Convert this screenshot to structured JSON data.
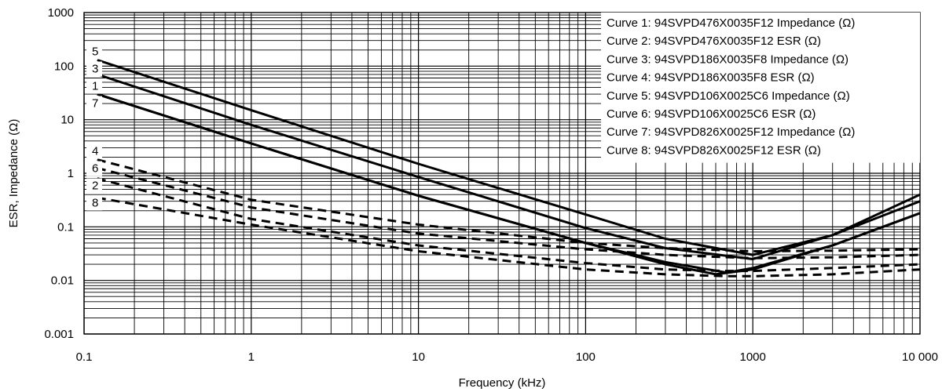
{
  "chart_data": {
    "type": "line",
    "xlabel": "Frequency (kHz)",
    "ylabel": "ESR, Impedance (Ω)",
    "x_scale": "log",
    "y_scale": "log",
    "xlim": [
      0.1,
      10000
    ],
    "ylim": [
      0.001,
      1000
    ],
    "x_tick_labels": [
      "0.1",
      "1",
      "10",
      "100",
      "1000",
      "10 000"
    ],
    "y_tick_labels": [
      "0.001",
      "0.01",
      "0.1",
      "1",
      "10",
      "100",
      "1000"
    ],
    "grid": true,
    "legend_position": "top-right",
    "series": [
      {
        "name": "Curve 1: 94SVPD476X0035F12 Impedance (Ω)",
        "label": "1",
        "style": "solid",
        "x": [
          0.12,
          1,
          10,
          100,
          300,
          700,
          1000,
          3000,
          10000
        ],
        "y": [
          30,
          3.6,
          0.38,
          0.05,
          0.022,
          0.014,
          0.017,
          0.045,
          0.18
        ]
      },
      {
        "name": "Curve 2: 94SVPD476X0035F12 ESR (Ω)",
        "label": "2",
        "style": "dashed",
        "x": [
          0.12,
          1,
          10,
          100,
          300,
          700,
          1000,
          3000,
          10000
        ],
        "y": [
          0.8,
          0.14,
          0.045,
          0.021,
          0.016,
          0.015,
          0.015,
          0.017,
          0.02
        ]
      },
      {
        "name": "Curve 3: 94SVPD186X0035F8 Impedance (Ω)",
        "label": "3",
        "style": "solid",
        "x": [
          0.12,
          1,
          10,
          100,
          300,
          1000,
          3000,
          10000
        ],
        "y": [
          70,
          8,
          0.85,
          0.095,
          0.04,
          0.025,
          0.07,
          0.3
        ]
      },
      {
        "name": "Curve 4: 94SVPD186X0035F8 ESR (Ω)",
        "label": "4",
        "style": "dashed",
        "x": [
          0.12,
          1,
          10,
          100,
          300,
          1000,
          3000,
          10000
        ],
        "y": [
          1.8,
          0.32,
          0.11,
          0.05,
          0.04,
          0.035,
          0.036,
          0.038
        ]
      },
      {
        "name": "Curve 5: 94SVPD106X0025C6 Impedance (Ω)",
        "label": "5",
        "style": "solid",
        "x": [
          0.12,
          1,
          10,
          100,
          300,
          1000,
          3000,
          10000
        ],
        "y": [
          130,
          15,
          1.5,
          0.17,
          0.06,
          0.03,
          0.07,
          0.4
        ]
      },
      {
        "name": "Curve 6: 94SVPD106X0025C6 ESR (Ω)",
        "label": "6",
        "style": "dashed",
        "x": [
          0.12,
          1,
          10,
          100,
          300,
          1000,
          3000,
          10000
        ],
        "y": [
          1.25,
          0.23,
          0.075,
          0.038,
          0.03,
          0.026,
          0.027,
          0.03
        ]
      },
      {
        "name": "Curve 7: 94SVPD826X0025F12 Impedance (Ω)",
        "label": "7",
        "style": "solid",
        "x": [
          0.12,
          1,
          10,
          100,
          300,
          600,
          1000,
          3000,
          10000
        ],
        "y": [
          30,
          3.6,
          0.38,
          0.05,
          0.02,
          0.013,
          0.016,
          0.045,
          0.18
        ]
      },
      {
        "name": "Curve 8: 94SVPD826X0025F12 ESR (Ω)",
        "label": "8",
        "style": "dashed",
        "x": [
          0.12,
          1,
          10,
          100,
          300,
          700,
          1000,
          3000,
          10000
        ],
        "y": [
          0.35,
          0.11,
          0.035,
          0.016,
          0.013,
          0.012,
          0.012,
          0.013,
          0.016
        ]
      }
    ]
  }
}
